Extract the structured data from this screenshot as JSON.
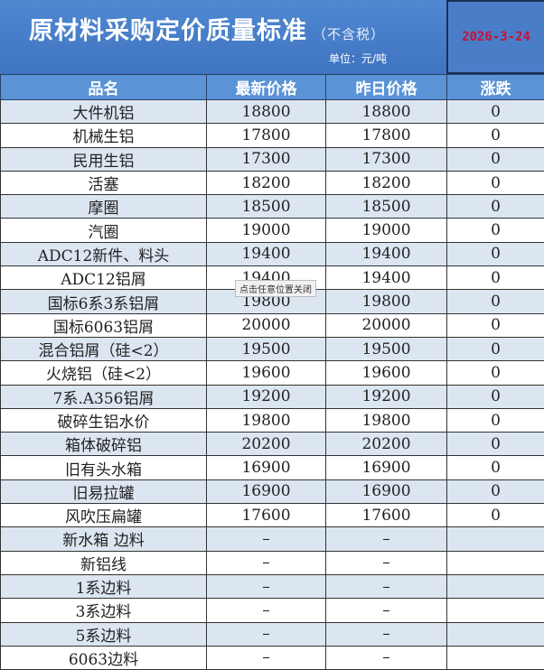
{
  "header": {
    "title": "原材料采购定价质量标准",
    "subtitle": "（不含税）",
    "unit": "单位：元/吨",
    "date": "2026-3-24"
  },
  "columns": [
    "品名",
    "最新价格",
    "昨日价格",
    "涨跌"
  ],
  "rows": [
    [
      "大件机铝",
      "18800",
      "18800",
      "0"
    ],
    [
      "机械生铝",
      "17800",
      "17800",
      "0"
    ],
    [
      "民用生铝",
      "17300",
      "17300",
      "0"
    ],
    [
      "活塞",
      "18200",
      "18200",
      "0"
    ],
    [
      "摩圈",
      "18500",
      "18500",
      "0"
    ],
    [
      "汽圈",
      "19000",
      "19000",
      "0"
    ],
    [
      "ADC12新件、料头",
      "19400",
      "19400",
      "0"
    ],
    [
      "ADC12铝屑",
      "19400",
      "19400",
      "0"
    ],
    [
      "国标6系3系铝屑",
      "19800",
      "19800",
      "0"
    ],
    [
      "国标6063铝屑",
      "20000",
      "20000",
      "0"
    ],
    [
      "混合铝屑（硅<2）",
      "19500",
      "19500",
      "0"
    ],
    [
      "火烧铝（硅<2）",
      "19600",
      "19600",
      "0"
    ],
    [
      "7系.A356铝屑",
      "19200",
      "19200",
      "0"
    ],
    [
      "破碎生铝水价",
      "19800",
      "19800",
      "0"
    ],
    [
      "箱体破碎铝",
      "20200",
      "20200",
      "0"
    ],
    [
      "旧有头水箱",
      "16900",
      "16900",
      "0"
    ],
    [
      "旧易拉罐",
      "16900",
      "16900",
      "0"
    ],
    [
      "风吹压扁罐",
      "17600",
      "17600",
      "0"
    ],
    [
      "新水箱 边料",
      "–",
      "–",
      ""
    ],
    [
      "新铝线",
      "–",
      "–",
      ""
    ],
    [
      "1系边料",
      "–",
      "–",
      ""
    ],
    [
      "3系边料",
      "–",
      "–",
      ""
    ],
    [
      "5系边料",
      "–",
      "–",
      ""
    ],
    [
      "6063边料",
      "–",
      "–",
      ""
    ]
  ],
  "tooltip": "点击任意位置关闭",
  "colors": {
    "header_bg": "#4a7dc7",
    "date": "#c8103a",
    "row_alt": "#dce6f1"
  }
}
